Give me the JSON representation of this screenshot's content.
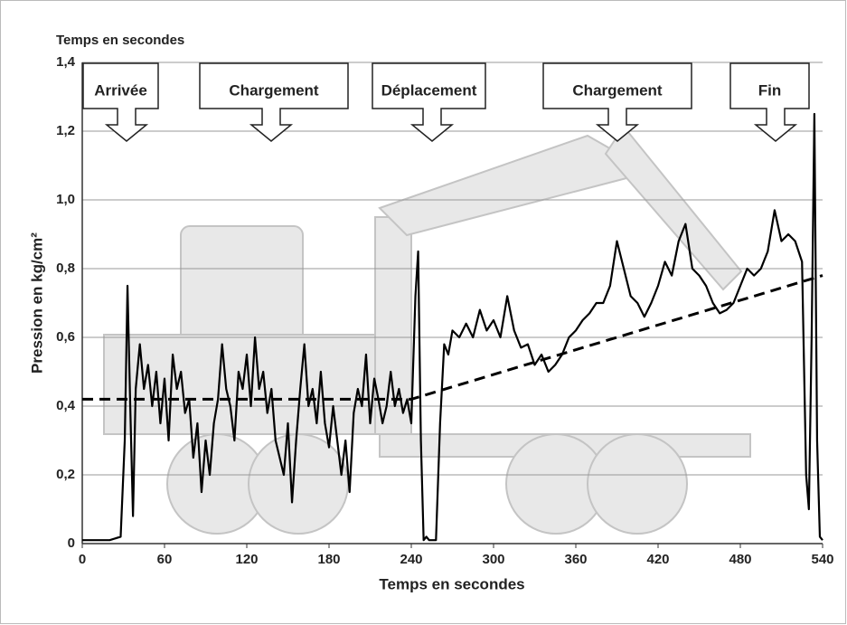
{
  "chart_data": {
    "type": "line",
    "title": "Temps en secondes",
    "xlabel": "Temps en secondes",
    "ylabel": "Pression en kg/cm²",
    "annotations": [
      "Arrivée",
      "Chargement",
      "Déplacement",
      "Chargement",
      "Fin"
    ],
    "annotation_color": "#e0592a",
    "xlim": [
      0,
      540
    ],
    "xticks": [
      0,
      60,
      120,
      180,
      240,
      300,
      360,
      420,
      480,
      540
    ],
    "ylim": [
      0,
      1.4
    ],
    "yticks": [
      0,
      {
        "value": 0.2,
        "label": "0,2"
      },
      {
        "value": 0.4,
        "label": "0,4"
      },
      {
        "value": 0.6,
        "label": "0,6"
      },
      {
        "value": 0.8,
        "label": "0,8"
      },
      {
        "value": 1.0,
        "label": "1,0"
      },
      {
        "value": 1.2,
        "label": "1,2"
      },
      {
        "value": 1.4,
        "label": "1,4"
      }
    ],
    "grid": true,
    "series": [
      {
        "color": "#000000",
        "dashed": false,
        "x": [
          0,
          10,
          20,
          28,
          31,
          33,
          35,
          37,
          39,
          42,
          45,
          48,
          51,
          54,
          57,
          60,
          63,
          66,
          69,
          72,
          75,
          78,
          81,
          84,
          87,
          90,
          93,
          96,
          99,
          102,
          105,
          108,
          111,
          114,
          117,
          120,
          123,
          126,
          129,
          132,
          135,
          138,
          141,
          144,
          147,
          150,
          153,
          156,
          159,
          162,
          165,
          168,
          171,
          174,
          177,
          180,
          183,
          186,
          189,
          192,
          195,
          198,
          201,
          204,
          207,
          210,
          213,
          216,
          219,
          222,
          225,
          228,
          231,
          234,
          237,
          240,
          243,
          245,
          247,
          249,
          251,
          253,
          255,
          258,
          261,
          264,
          267,
          270,
          275,
          280,
          285,
          290,
          295,
          300,
          305,
          310,
          315,
          320,
          325,
          330,
          335,
          340,
          345,
          350,
          355,
          360,
          365,
          370,
          375,
          380,
          385,
          390,
          395,
          400,
          405,
          410,
          415,
          420,
          425,
          430,
          435,
          440,
          445,
          450,
          455,
          460,
          465,
          470,
          475,
          480,
          485,
          490,
          495,
          500,
          505,
          510,
          515,
          520,
          525,
          528,
          530,
          532,
          534,
          536,
          538,
          540
        ],
        "values": [
          0.01,
          0.01,
          0.01,
          0.02,
          0.3,
          0.75,
          0.4,
          0.08,
          0.45,
          0.58,
          0.45,
          0.52,
          0.4,
          0.5,
          0.35,
          0.48,
          0.3,
          0.55,
          0.45,
          0.5,
          0.38,
          0.42,
          0.25,
          0.35,
          0.15,
          0.3,
          0.2,
          0.35,
          0.42,
          0.58,
          0.45,
          0.4,
          0.3,
          0.5,
          0.45,
          0.55,
          0.4,
          0.6,
          0.45,
          0.5,
          0.38,
          0.45,
          0.3,
          0.25,
          0.2,
          0.35,
          0.12,
          0.3,
          0.45,
          0.58,
          0.4,
          0.45,
          0.35,
          0.5,
          0.35,
          0.28,
          0.4,
          0.3,
          0.2,
          0.3,
          0.15,
          0.38,
          0.45,
          0.4,
          0.55,
          0.35,
          0.48,
          0.42,
          0.35,
          0.4,
          0.5,
          0.4,
          0.45,
          0.38,
          0.42,
          0.35,
          0.72,
          0.85,
          0.3,
          0.01,
          0.02,
          0.01,
          0.01,
          0.01,
          0.35,
          0.58,
          0.55,
          0.62,
          0.6,
          0.64,
          0.6,
          0.68,
          0.62,
          0.65,
          0.6,
          0.72,
          0.62,
          0.57,
          0.58,
          0.52,
          0.55,
          0.5,
          0.52,
          0.55,
          0.6,
          0.62,
          0.65,
          0.67,
          0.7,
          0.7,
          0.75,
          0.88,
          0.8,
          0.72,
          0.7,
          0.66,
          0.7,
          0.75,
          0.82,
          0.78,
          0.88,
          0.93,
          0.8,
          0.78,
          0.75,
          0.7,
          0.67,
          0.68,
          0.7,
          0.75,
          0.8,
          0.78,
          0.8,
          0.85,
          0.97,
          0.88,
          0.9,
          0.88,
          0.82,
          0.2,
          0.1,
          0.6,
          1.25,
          0.3,
          0.02,
          0.01
        ]
      },
      {
        "color": "#000000",
        "dashed": true,
        "x": [
          0,
          240,
          540
        ],
        "values": [
          0.42,
          0.42,
          0.78
        ]
      }
    ]
  }
}
